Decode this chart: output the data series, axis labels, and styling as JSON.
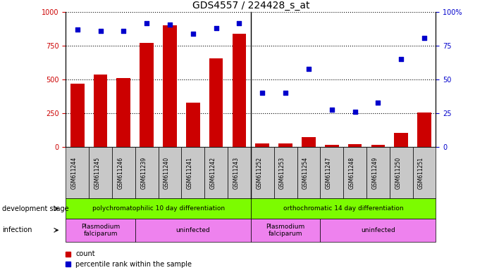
{
  "title": "GDS4557 / 224428_s_at",
  "samples": [
    "GSM611244",
    "GSM611245",
    "GSM611246",
    "GSM611239",
    "GSM611240",
    "GSM611241",
    "GSM611242",
    "GSM611243",
    "GSM611252",
    "GSM611253",
    "GSM611254",
    "GSM611247",
    "GSM611248",
    "GSM611249",
    "GSM611250",
    "GSM611251"
  ],
  "counts": [
    470,
    540,
    510,
    770,
    900,
    330,
    660,
    840,
    30,
    25,
    75,
    15,
    20,
    18,
    105,
    255
  ],
  "percentiles": [
    87,
    86,
    86,
    92,
    91,
    84,
    88,
    92,
    40,
    40,
    58,
    28,
    26,
    33,
    65,
    81
  ],
  "ylim_left": [
    0,
    1000
  ],
  "ylim_right": [
    0,
    100
  ],
  "yticks_left": [
    0,
    250,
    500,
    750,
    1000
  ],
  "yticks_right": [
    0,
    25,
    50,
    75,
    100
  ],
  "bar_color": "#cc0000",
  "dot_color": "#0000cc",
  "grid_color": "#000000",
  "bar_width": 0.6,
  "group1_label": "polychromatophilic 10 day differentiation",
  "group2_label": "orthochromatic 14 day differentiation",
  "group_color": "#7CFC00",
  "inf_groups": [
    {
      "start": 0,
      "end": 3,
      "label": "Plasmodium\nfalciparum"
    },
    {
      "start": 3,
      "end": 8,
      "label": "uninfected"
    },
    {
      "start": 8,
      "end": 11,
      "label": "Plasmodium\nfalciparum"
    },
    {
      "start": 11,
      "end": 16,
      "label": "uninfected"
    }
  ],
  "inf_color": "#ee82ee",
  "dev_stage_label": "development stage",
  "infection_label": "infection",
  "legend_count_label": "count",
  "legend_pct_label": "percentile rank within the sample",
  "bg_color": "#ffffff",
  "tick_area_color": "#c8c8c8",
  "right_axis_color": "#0000cc",
  "left_axis_color": "#cc0000",
  "n_group1": 8,
  "n_group2": 8
}
